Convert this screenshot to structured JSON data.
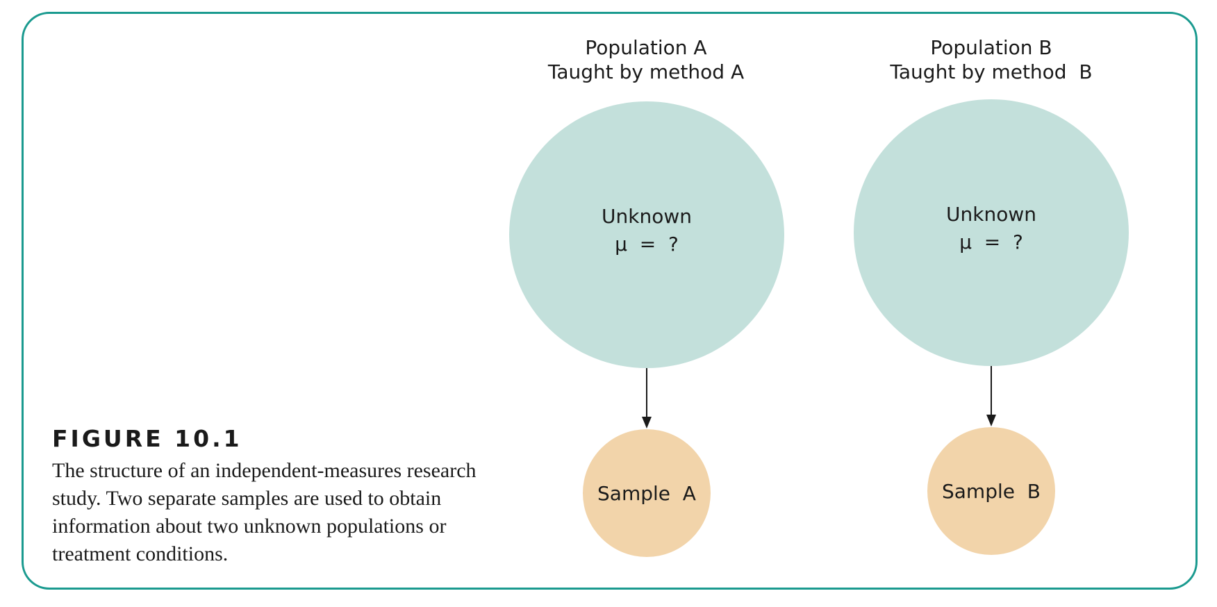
{
  "caption": {
    "figure_label": "FIGURE 10.1",
    "text": "The structure of an independent-measures research study. Two separate samples are used to obtain information about two unknown populations or treatment conditions."
  },
  "populations": [
    {
      "title_line1": "Population A",
      "title_line2": "Taught by method A",
      "status": "Unknown",
      "parameter": "μ  =  ?",
      "sample_label": "Sample  A"
    },
    {
      "title_line1": "Population B",
      "title_line2": "Taught by method  B",
      "status": "Unknown",
      "parameter": "μ  =  ?",
      "sample_label": "Sample  B"
    }
  ],
  "colors": {
    "frame": "#1a9a8f",
    "population_fill": "#c3e0db",
    "sample_fill": "#f2d4aa",
    "arrow": "#1a1a1a"
  }
}
